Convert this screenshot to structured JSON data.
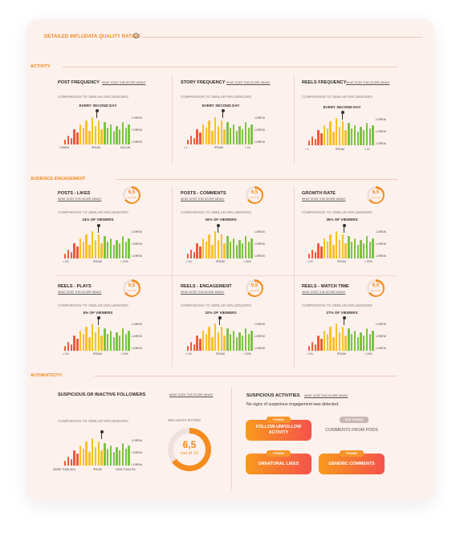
{
  "header": {
    "title": "DETAILED INFLUDATA QUALITY RATING",
    "info": "i"
  },
  "sections": {
    "activity": "ACTIVITY",
    "engagement": "AUDIENCE ENGAGEMENT",
    "authenticity": "AUTHENTICITY"
  },
  "common": {
    "comparison": "COMPARISON TO SIMILAR INFLUENCERS",
    "what": "WHAT DOES THIS SCORE MEAN?",
    "lorem": "LOREM",
    "ipsum": "IPSUM",
    "lt1": "< 1",
    "gt10": "> 10",
    "lt1p": "< 1%",
    "gt20p": "> 20%"
  },
  "activity": {
    "post": {
      "title": "POST FREQUENCY",
      "stat": "EVERY SECOND DAY",
      "x": [
        "LOREM",
        "IPSUM",
        "DOLOR"
      ]
    },
    "story": {
      "title": "STORY FREQUENCY",
      "stat": "EVERY SECOND DAY",
      "x": [
        "< 1",
        "IPSUM",
        "> 15"
      ]
    },
    "reels": {
      "title": "REELS FREQUENCY",
      "stat": "EVERY SECOND DAY",
      "x": [
        "< 1",
        "IPSUM",
        "> 10"
      ]
    }
  },
  "engagement": {
    "posts_likes": {
      "title": "POSTS - LIKES",
      "stat": "24% OF VIEWERS",
      "score": "6,5",
      "out": "out of 10"
    },
    "posts_comments": {
      "title": "POSTS - COMMENTS",
      "stat": "16% OF VIEWERS",
      "score": "6,5",
      "out": "out of 10"
    },
    "growth_rate": {
      "title": "GROWTH RATE",
      "stat": "35% OF VIEWERS",
      "score": "6,5",
      "out": "out of 10"
    },
    "reels_plays": {
      "title": "REELS - PLAYS",
      "stat": "6% OF VIEWERS",
      "score": "6,5",
      "out": "out of 10"
    },
    "reels_engagement": {
      "title": "REELS - ENGAGEMENT",
      "stat": "10% OF VIEWERS",
      "score": "6,5",
      "out": "out of 10"
    },
    "reels_watch": {
      "title": "REELS - WATCH TIME",
      "stat": "27% OF VIEWERS",
      "score": "6,5",
      "out": "out of 10"
    }
  },
  "authenticity": {
    "followers_title": "SUSPICIOUS OR INACTIVE FOLLOWERS",
    "x": [
      "MORE THAN 30%",
      "IPSUM",
      "LESS THAN 5%"
    ],
    "infludata_rating": "INFLUDATA RATING",
    "score": "6,5",
    "out": "out of 10",
    "activities_title": "SUSPICIOUS ACTIVITIES",
    "activities_msg": "No signs of suspicious engagement was detected.",
    "items": [
      {
        "tag": "FOUND",
        "label": "FOLLOW-UNFOLLOW ACTIVITY"
      },
      {
        "tag": "NOT FOUND",
        "label": "COMMENTS FROM PODS"
      },
      {
        "tag": "FOUND",
        "label": "UNNATURAL LIKES"
      },
      {
        "tag": "FOUND",
        "label": "GENERIC COMMENTS"
      }
    ]
  },
  "chart_data": {
    "type": "bar",
    "values": [
      3,
      5,
      4,
      9,
      7,
      12,
      10,
      14,
      8,
      16,
      11,
      14,
      9,
      13,
      10,
      12,
      8,
      11,
      9,
      13,
      10,
      12
    ],
    "colors": {
      "low": "#f05a3c",
      "mid": "#f7c12a",
      "high": "#7cc244"
    }
  }
}
